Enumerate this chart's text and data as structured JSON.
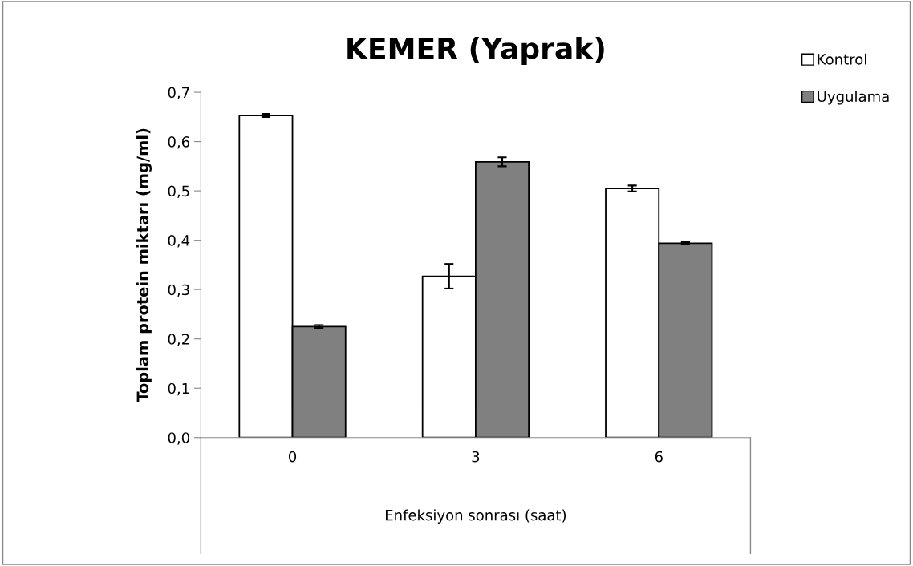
{
  "chart_data": {
    "type": "bar",
    "title": "KEMER (Yaprak)",
    "xlabel": "Enfeksiyon sonrası (saat)",
    "ylabel": "Toplam protein miktarı (mg/ml)",
    "categories": [
      "0",
      "3",
      "6"
    ],
    "series": [
      {
        "name": "Kontrol",
        "color": "#ffffff",
        "values": [
          0.653,
          0.327,
          0.505
        ],
        "errors": [
          0.003,
          0.025,
          0.006
        ]
      },
      {
        "name": "Uygulama",
        "color": "#808080",
        "values": [
          0.225,
          0.559,
          0.394
        ],
        "errors": [
          0.003,
          0.009,
          0.002
        ]
      }
    ],
    "ylim": [
      0,
      0.7
    ],
    "yticks": [
      {
        "value": 0,
        "label": "0,0"
      },
      {
        "value": 0.1,
        "label": "0,1"
      },
      {
        "value": 0.2,
        "label": "0,2"
      },
      {
        "value": 0.3,
        "label": "0,3"
      },
      {
        "value": 0.4,
        "label": "0,4"
      },
      {
        "value": 0.5,
        "label": "0,5"
      },
      {
        "value": 0.6,
        "label": "0,6"
      },
      {
        "value": 0.7,
        "label": "0,7"
      }
    ],
    "grid": false,
    "legend": "top right"
  }
}
